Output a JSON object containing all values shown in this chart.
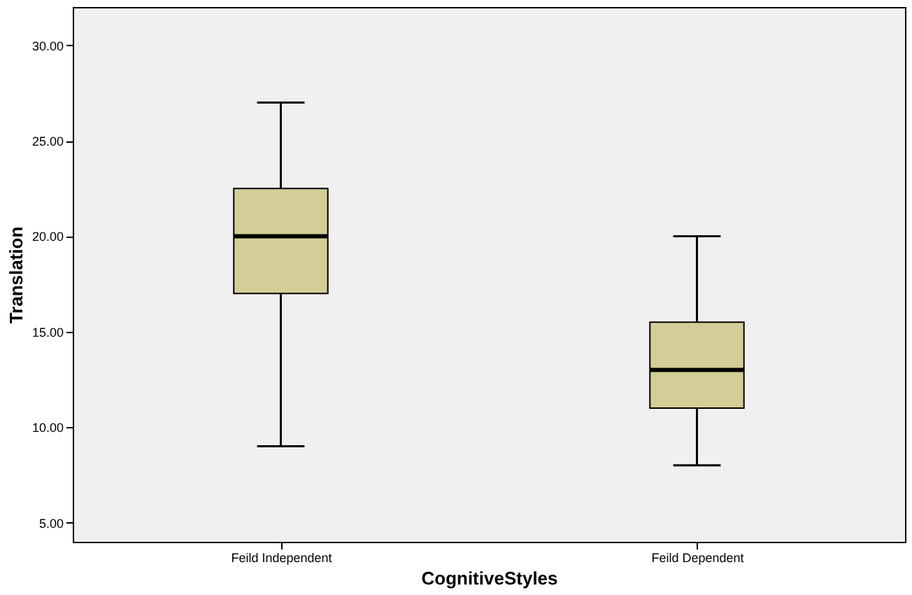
{
  "chart_data": {
    "type": "box",
    "xlabel": "CognitiveStyles",
    "ylabel": "Translation",
    "categories": [
      "Feild Independent",
      "Feild Dependent"
    ],
    "boxes": [
      {
        "low": 9,
        "q1": 17,
        "median": 20,
        "q3": 22.5,
        "high": 27
      },
      {
        "low": 8,
        "q1": 11,
        "median": 13,
        "q3": 15.5,
        "high": 20
      }
    ],
    "color": "#d3ce97",
    "ylim": [
      4,
      32
    ],
    "yticks": [
      {
        "value": 5,
        "label": "5.00"
      },
      {
        "value": 10,
        "label": "10.00"
      },
      {
        "value": 15,
        "label": "15.00"
      },
      {
        "value": 20,
        "label": "20.00"
      },
      {
        "value": 25,
        "label": "25.00"
      },
      {
        "value": 30,
        "label": "30.00"
      }
    ],
    "grid": false
  }
}
